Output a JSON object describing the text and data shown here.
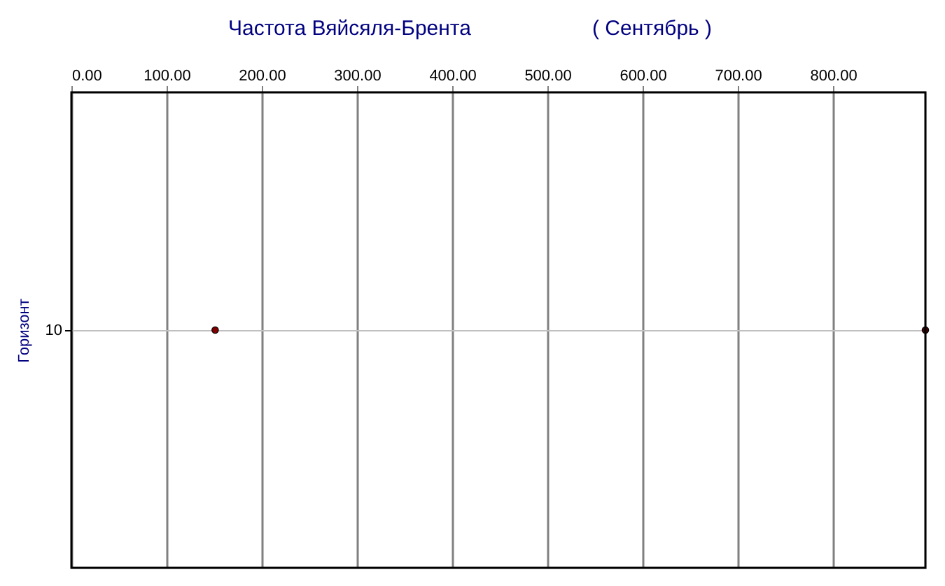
{
  "chart_data": {
    "type": "scatter",
    "orientation": "horizontal",
    "title": "Частота Вяйсяля-Брента",
    "subtitle": "( Сентябрь )",
    "ylabel": "Горизонт",
    "categories": [
      "10"
    ],
    "series": [
      {
        "color": "#800000",
        "values": [
          151
        ]
      },
      {
        "color": "#400000",
        "values": [
          897
        ]
      }
    ],
    "xlim": [
      0,
      897
    ],
    "xticks": [
      {
        "value": 0,
        "label": "0.00"
      },
      {
        "value": 100,
        "label": "100.00"
      },
      {
        "value": 200,
        "label": "200.00"
      },
      {
        "value": 300,
        "label": "300.00"
      },
      {
        "value": 400,
        "label": "400.00"
      },
      {
        "value": 500,
        "label": "500.00"
      },
      {
        "value": 600,
        "label": "600.00"
      },
      {
        "value": 700,
        "label": "700.00"
      },
      {
        "value": 800,
        "label": "800.00"
      }
    ],
    "grid": true,
    "marker": "circle"
  }
}
